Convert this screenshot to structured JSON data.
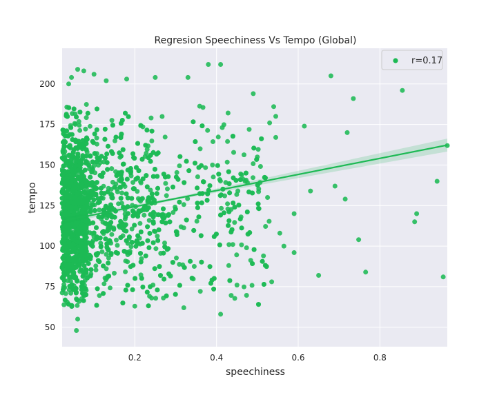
{
  "chart_data": {
    "type": "scatter",
    "title": "Regresion Speechiness Vs Tempo (Global)",
    "xlabel": "speechiness",
    "ylabel": "tempo",
    "xlim": [
      0.022,
      0.965
    ],
    "ylim": [
      38,
      222
    ],
    "xticks": [
      0.2,
      0.4,
      0.6,
      0.8
    ],
    "yticks": [
      50,
      75,
      100,
      125,
      150,
      175,
      200
    ],
    "grid": true,
    "legend": {
      "placement": "top-right",
      "label": "r=0.17"
    },
    "colors": {
      "point": "#1db954",
      "background": "#eaeaf2",
      "grid": "#ffffff"
    },
    "regression": {
      "x": [
        0.022,
        0.965
      ],
      "y": [
        115.5,
        162.3
      ]
    },
    "series": [
      {
        "name": "r=0.17",
        "points": [
          [
            0.68,
            205
          ],
          [
            0.735,
            191
          ],
          [
            0.855,
            196
          ],
          [
            0.72,
            170
          ],
          [
            0.615,
            174
          ],
          [
            0.63,
            134
          ],
          [
            0.69,
            137
          ],
          [
            0.715,
            129
          ],
          [
            0.59,
            120
          ],
          [
            0.89,
            120
          ],
          [
            0.885,
            115
          ],
          [
            0.94,
            140
          ],
          [
            0.748,
            104
          ],
          [
            0.565,
            100
          ],
          [
            0.59,
            96
          ],
          [
            0.65,
            82
          ],
          [
            0.765,
            84
          ],
          [
            0.955,
            81
          ],
          [
            0.965,
            162
          ],
          [
            0.535,
            78
          ],
          [
            0.515,
            94
          ],
          [
            0.555,
            108
          ],
          [
            0.525,
            130
          ],
          [
            0.545,
            167
          ],
          [
            0.53,
            176
          ],
          [
            0.545,
            180
          ],
          [
            0.54,
            186
          ],
          [
            0.49,
            194
          ],
          [
            0.41,
            212
          ],
          [
            0.38,
            212
          ],
          [
            0.33,
            204
          ],
          [
            0.25,
            204
          ],
          [
            0.18,
            203
          ],
          [
            0.13,
            202
          ],
          [
            0.1,
            206
          ],
          [
            0.075,
            208
          ],
          [
            0.06,
            209
          ],
          [
            0.045,
            204
          ],
          [
            0.038,
            200
          ],
          [
            0.057,
            48
          ],
          [
            0.06,
            55
          ],
          [
            0.41,
            58
          ],
          [
            0.2,
            63
          ],
          [
            0.32,
            62
          ],
          [
            0.27,
            68
          ],
          [
            0.5,
            155
          ],
          [
            0.48,
            172
          ],
          [
            0.47,
            140
          ],
          [
            0.46,
            118
          ],
          [
            0.44,
            101
          ],
          [
            0.43,
            88
          ],
          [
            0.45,
            76
          ],
          [
            0.42,
            131
          ],
          [
            0.39,
            150
          ],
          [
            0.36,
            160
          ]
        ]
      }
    ]
  }
}
